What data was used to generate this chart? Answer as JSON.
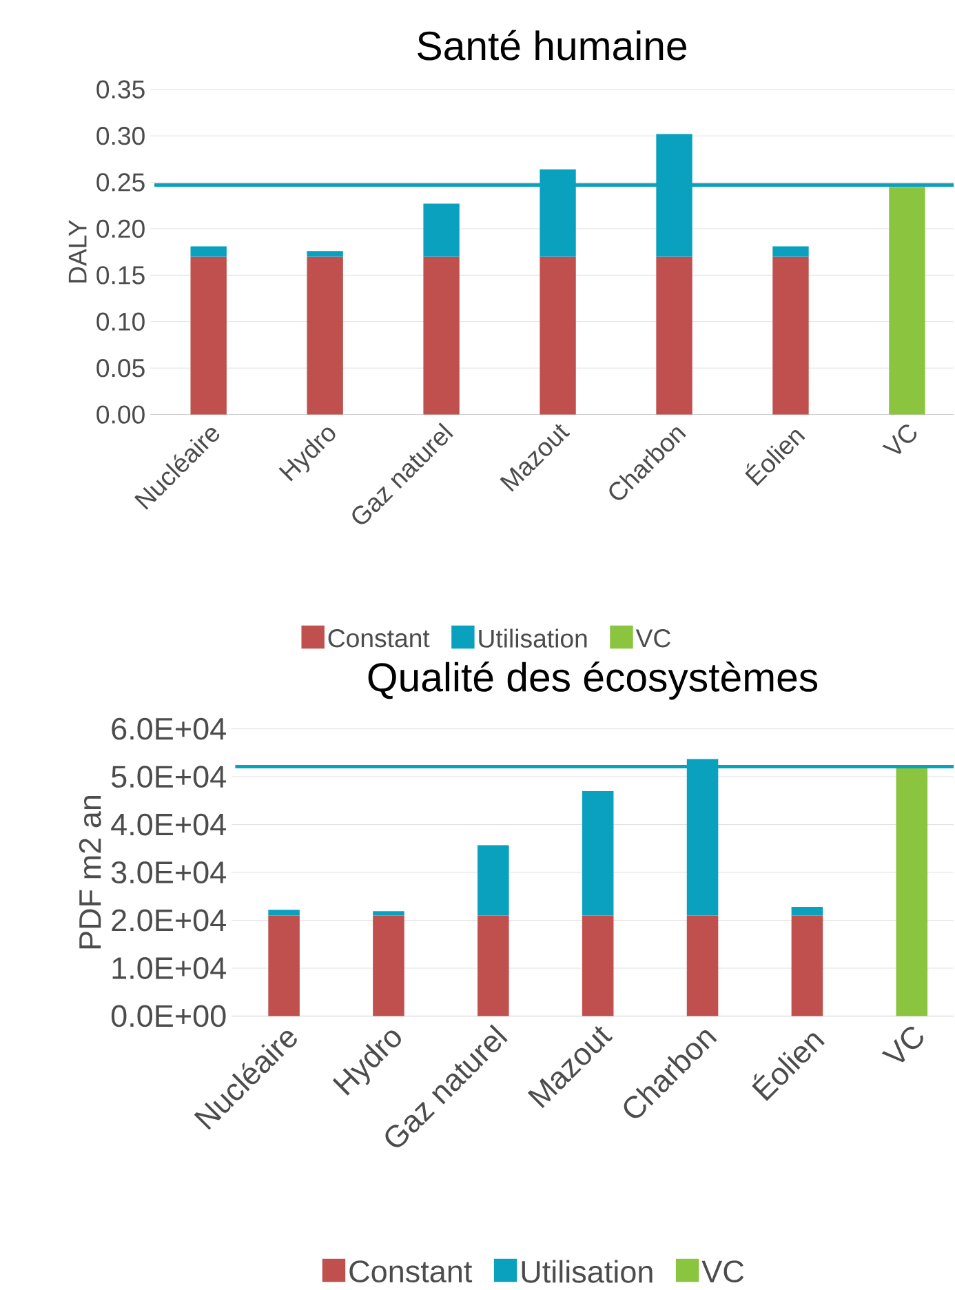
{
  "chart_data": [
    {
      "type": "bar",
      "title": "Santé humaine",
      "ylabel": "DALY",
      "stacked": true,
      "grid": "y",
      "legend": "bottom",
      "categories": [
        "Nucléaire",
        "Hydro",
        "Gaz naturel",
        "Mazout",
        "Charbon",
        "Éolien",
        "VC"
      ],
      "series": [
        {
          "name": "Constant",
          "color": "#c0504d",
          "values": [
            0.17,
            0.17,
            0.17,
            0.17,
            0.17,
            0.17,
            null
          ]
        },
        {
          "name": "Utilisation",
          "color": "#0aa1be",
          "values": [
            0.011,
            0.006,
            0.057,
            0.094,
            0.132,
            0.011,
            null
          ]
        },
        {
          "name": "VC",
          "color": "#8bc43f",
          "values": [
            null,
            null,
            null,
            null,
            null,
            null,
            0.245
          ]
        }
      ],
      "ylim": [
        0,
        0.35
      ],
      "yticks": [
        {
          "value": 0,
          "label": "0.00"
        },
        {
          "value": 0.05,
          "label": "0.05"
        },
        {
          "value": 0.1,
          "label": "0.10"
        },
        {
          "value": 0.15,
          "label": "0.15"
        },
        {
          "value": 0.2,
          "label": "0.20"
        },
        {
          "value": 0.25,
          "label": "0.25"
        },
        {
          "value": 0.3,
          "label": "0.30"
        },
        {
          "value": 0.35,
          "label": "0.35"
        }
      ],
      "ref_lines": [
        {
          "axis": "y",
          "value": 0.247,
          "label": null,
          "color": "#0aa1be"
        }
      ]
    },
    {
      "type": "bar",
      "title": "Qualité des écosystèmes",
      "ylabel": "PDF m2 an",
      "stacked": true,
      "grid": "y",
      "legend": "bottom",
      "categories": [
        "Nucléaire",
        "Hydro",
        "Gaz naturel",
        "Mazout",
        "Charbon",
        "Éolien",
        "VC"
      ],
      "series": [
        {
          "name": "Constant",
          "color": "#c0504d",
          "values": [
            21000,
            21000,
            21000,
            21000,
            21000,
            21000,
            null
          ]
        },
        {
          "name": "Utilisation",
          "color": "#0aa1be",
          "values": [
            1200,
            900,
            14700,
            26000,
            32700,
            1800,
            null
          ]
        },
        {
          "name": "VC",
          "color": "#8bc43f",
          "values": [
            null,
            null,
            null,
            null,
            null,
            null,
            52000
          ]
        }
      ],
      "ylim": [
        0,
        60000
      ],
      "yticks": [
        {
          "value": 0,
          "label": "0.0E+00"
        },
        {
          "value": 10000,
          "label": "1.0E+04"
        },
        {
          "value": 20000,
          "label": "2.0E+04"
        },
        {
          "value": 30000,
          "label": "3.0E+04"
        },
        {
          "value": 40000,
          "label": "4.0E+04"
        },
        {
          "value": 50000,
          "label": "5.0E+04"
        },
        {
          "value": 60000,
          "label": "6.0E+04"
        }
      ],
      "ref_lines": [
        {
          "axis": "y",
          "value": 52100,
          "label": null,
          "color": "#0aa1be"
        }
      ]
    }
  ]
}
